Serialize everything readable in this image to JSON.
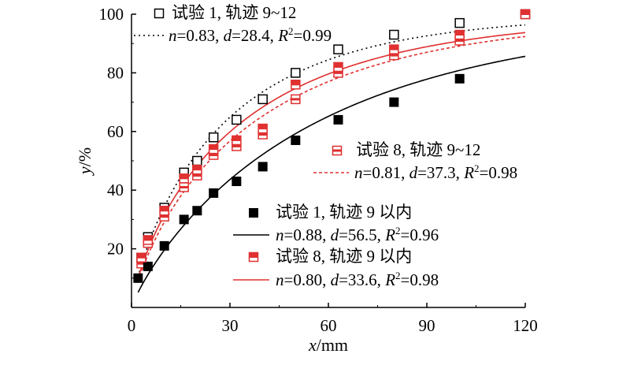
{
  "chart_data": {
    "type": "scatter",
    "xlabel": {
      "var": "x",
      "unit": "/mm"
    },
    "ylabel": {
      "var": "y",
      "unit": "/%"
    },
    "xlim": [
      0,
      120
    ],
    "ylim": [
      0,
      100
    ],
    "xticks": [
      "0",
      "30",
      "60",
      "90",
      "120"
    ],
    "yticks": [
      "20",
      "40",
      "60",
      "80",
      "100"
    ],
    "grid": false,
    "series": [
      {
        "name": "试验 1, 轨迹 9~12",
        "marker": "open-square",
        "color": "#000000",
        "fit_line": "dotted",
        "fit_label": {
          "n": "0.83",
          "d": "28.4",
          "r2": "0.99"
        },
        "fit_params": {
          "n": 0.83,
          "d": 28.4
        },
        "points": [
          {
            "x": 3,
            "y": 17
          },
          {
            "x": 5,
            "y": 24
          },
          {
            "x": 10,
            "y": 34
          },
          {
            "x": 16,
            "y": 46
          },
          {
            "x": 20,
            "y": 50
          },
          {
            "x": 25,
            "y": 58
          },
          {
            "x": 32,
            "y": 64
          },
          {
            "x": 40,
            "y": 71
          },
          {
            "x": 50,
            "y": 80
          },
          {
            "x": 63,
            "y": 88
          },
          {
            "x": 80,
            "y": 93
          },
          {
            "x": 100,
            "y": 97
          },
          {
            "x": 120,
            "y": 100
          }
        ]
      },
      {
        "name": "试验 8, 轨迹 9~12",
        "marker": "red-open-square-half",
        "color": "#e03030",
        "fit_line": "dashed",
        "fit_label": {
          "n": "0.81",
          "d": "37.3",
          "r2": "0.98"
        },
        "fit_params": {
          "n": 0.81,
          "d": 37.3
        },
        "points": [
          {
            "x": 3,
            "y": 15
          },
          {
            "x": 5,
            "y": 22
          },
          {
            "x": 10,
            "y": 31
          },
          {
            "x": 16,
            "y": 41
          },
          {
            "x": 20,
            "y": 45
          },
          {
            "x": 25,
            "y": 52
          },
          {
            "x": 32,
            "y": 55
          },
          {
            "x": 40,
            "y": 59
          },
          {
            "x": 50,
            "y": 71
          },
          {
            "x": 63,
            "y": 80
          },
          {
            "x": 80,
            "y": 86
          },
          {
            "x": 100,
            "y": 91
          },
          {
            "x": 120,
            "y": 100
          }
        ]
      },
      {
        "name": "试验 1, 轨迹 9 以内",
        "marker": "filled-square",
        "color": "#000000",
        "fit_line": "solid",
        "fit_label": {
          "n": "0.88",
          "d": "56.5",
          "r2": "0.96"
        },
        "fit_params": {
          "n": 0.88,
          "d": 56.5
        },
        "points": [
          {
            "x": 2,
            "y": 10
          },
          {
            "x": 5,
            "y": 14
          },
          {
            "x": 10,
            "y": 21
          },
          {
            "x": 16,
            "y": 30
          },
          {
            "x": 20,
            "y": 33
          },
          {
            "x": 25,
            "y": 39
          },
          {
            "x": 32,
            "y": 43
          },
          {
            "x": 40,
            "y": 48
          },
          {
            "x": 50,
            "y": 57
          },
          {
            "x": 63,
            "y": 64
          },
          {
            "x": 80,
            "y": 70
          },
          {
            "x": 100,
            "y": 78
          },
          {
            "x": 120,
            "y": 100
          }
        ]
      },
      {
        "name": "试验 8, 轨迹 9 以内",
        "marker": "red-half-filled-square",
        "color": "#e03030",
        "fit_line": "solid",
        "fit_label": {
          "n": "0.80",
          "d": "33.6",
          "r2": "0.98"
        },
        "fit_params": {
          "n": 0.8,
          "d": 33.6
        },
        "points": [
          {
            "x": 3,
            "y": 17
          },
          {
            "x": 5,
            "y": 23
          },
          {
            "x": 10,
            "y": 33
          },
          {
            "x": 16,
            "y": 44
          },
          {
            "x": 20,
            "y": 47
          },
          {
            "x": 25,
            "y": 54
          },
          {
            "x": 32,
            "y": 57
          },
          {
            "x": 40,
            "y": 61
          },
          {
            "x": 50,
            "y": 76
          },
          {
            "x": 63,
            "y": 82
          },
          {
            "x": 80,
            "y": 88
          },
          {
            "x": 100,
            "y": 93
          },
          {
            "x": 120,
            "y": 100
          }
        ]
      }
    ]
  }
}
